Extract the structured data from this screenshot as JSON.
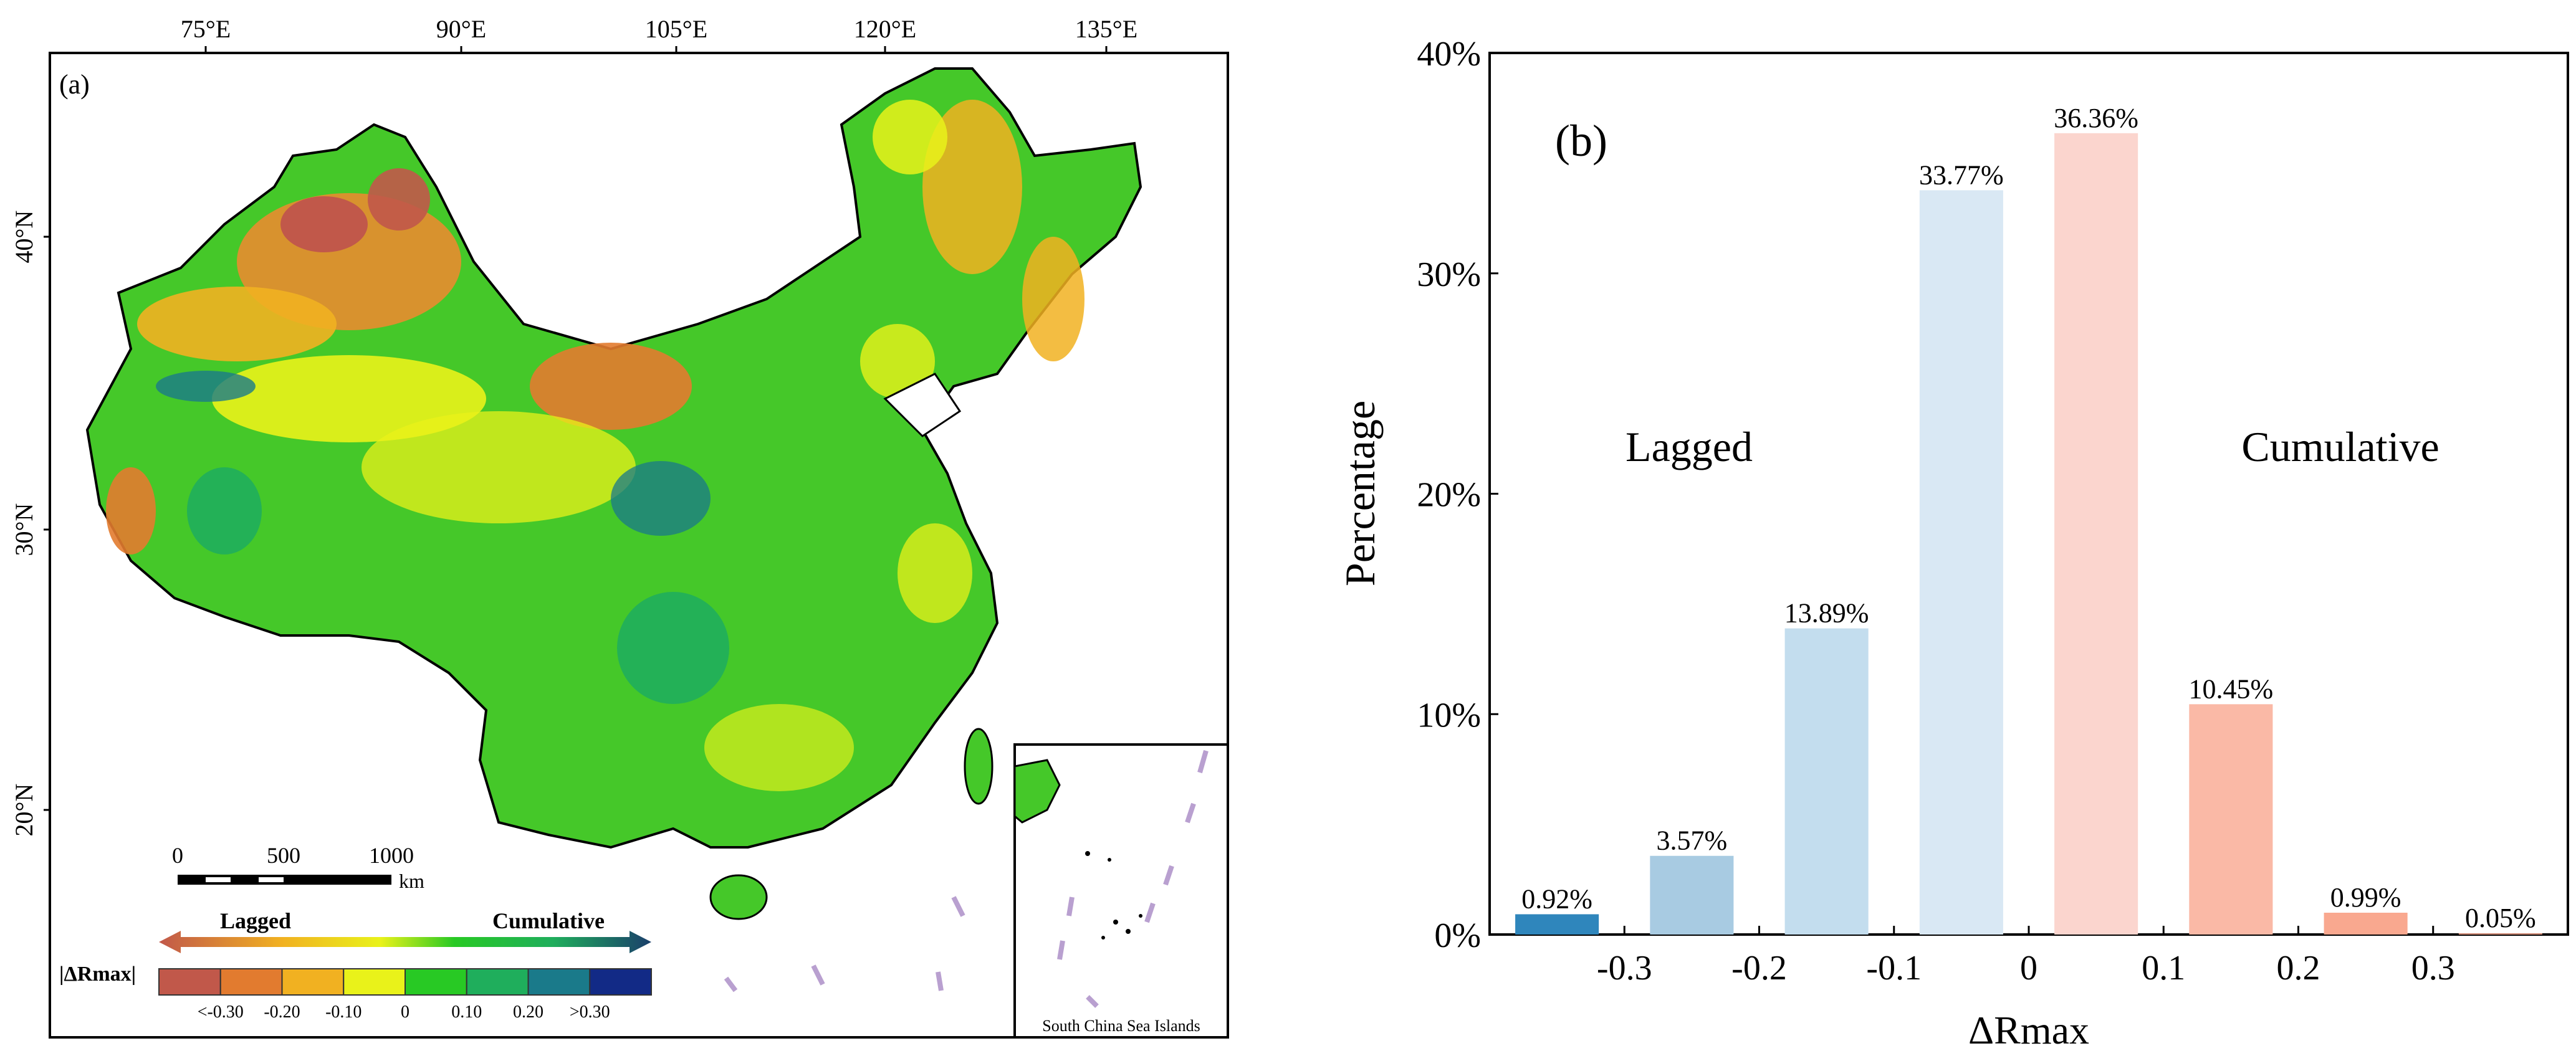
{
  "panel_a": {
    "label": "(a)",
    "lon_ticks": [
      "75°E",
      "90°E",
      "105°E",
      "120°E",
      "135°E"
    ],
    "lat_ticks": [
      "40°N",
      "30°N",
      "20°N"
    ],
    "scale_bar": {
      "labels": [
        "0",
        "500",
        "1000"
      ],
      "unit": "km"
    },
    "legend": {
      "left_label": "Lagged",
      "right_label": "Cumulative",
      "title": "|ΔRmax|",
      "bins": [
        "<-0.30",
        "-0.20",
        "-0.10",
        "0",
        "0.10",
        "0.20",
        ">0.30"
      ],
      "colors": [
        "#c1584a",
        "#e27b2f",
        "#f1b121",
        "#e9f21a",
        "#28c924",
        "#1fae5c",
        "#1a7a8a",
        "#122a86"
      ]
    },
    "inset_label": "South China Sea Islands"
  },
  "chart_data": {
    "type": "bar",
    "panel_label": "(b)",
    "xlabel": "ΔRmax",
    "ylabel": "Percentage",
    "x_ticks": [
      "-0.3",
      "-0.2",
      "-0.1",
      "0",
      "0.1",
      "0.2",
      "0.3"
    ],
    "y_ticks": [
      "0%",
      "10%",
      "20%",
      "30%",
      "40%"
    ],
    "ylim": [
      0,
      40
    ],
    "xlim": [
      -0.4,
      0.4
    ],
    "bin_centers": [
      -0.35,
      -0.25,
      -0.15,
      -0.05,
      0.05,
      0.15,
      0.25,
      0.35
    ],
    "values": [
      0.92,
      3.57,
      13.89,
      33.77,
      36.36,
      10.45,
      0.99,
      0.05
    ],
    "value_labels": [
      "0.92%",
      "3.57%",
      "13.89%",
      "33.77%",
      "36.36%",
      "10.45%",
      "0.99%",
      "0.05%"
    ],
    "bar_colors": [
      "#2f86bc",
      "#a8cbe2",
      "#c3ddee",
      "#d9e8f4",
      "#fbd5ce",
      "#fab9a6",
      "#f9a88f",
      "#f7a389"
    ],
    "annotations": [
      "Lagged",
      "Cumulative"
    ],
    "grid": false,
    "legend": "none"
  }
}
